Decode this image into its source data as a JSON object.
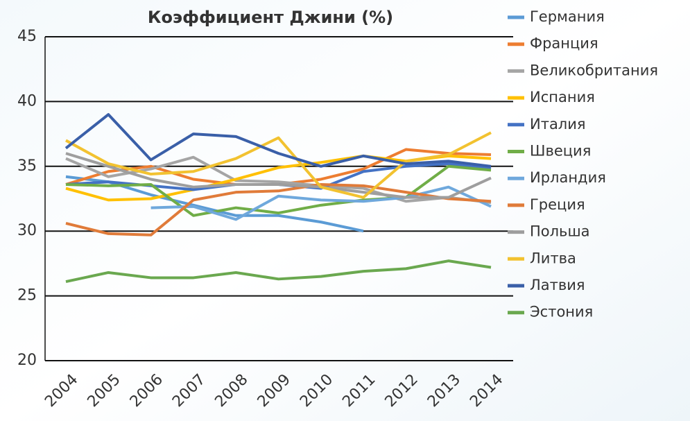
{
  "chart_data": {
    "type": "line",
    "title": "Коэффициент Джини (%)",
    "categories": [
      "2004",
      "2005",
      "2006",
      "2007",
      "2008",
      "2009",
      "2010",
      "2011",
      "2012",
      "2013",
      "2014"
    ],
    "ylim": [
      20,
      45
    ],
    "yticks": [
      20,
      25,
      30,
      35,
      40,
      45
    ],
    "grid": true,
    "legend": "right",
    "series": [
      {
        "name": "Германия",
        "color": "#5b9bd5",
        "values": [
          34.2,
          33.8,
          32.8,
          32.0,
          31.2,
          31.2,
          30.7,
          30.0,
          null,
          null,
          null
        ]
      },
      {
        "name": "Франция",
        "color": "#ed7d31",
        "values": [
          33.6,
          34.6,
          35.0,
          34.0,
          33.6,
          33.6,
          34.0,
          34.8,
          36.3,
          36.0,
          35.9
        ]
      },
      {
        "name": "Великобритания",
        "color": "#a5a5a5",
        "values": [
          35.6,
          34.2,
          34.8,
          35.7,
          33.9,
          33.8,
          33.5,
          33.3,
          32.3,
          32.6,
          32.2
        ]
      },
      {
        "name": "Испания",
        "color": "#ffc000",
        "values": [
          33.3,
          32.4,
          32.5,
          33.2,
          34.0,
          34.9,
          35.3,
          35.8,
          35.4,
          35.8,
          35.6
        ]
      },
      {
        "name": "Италия",
        "color": "#4472c4",
        "values": [
          33.6,
          33.8,
          33.5,
          33.2,
          33.6,
          33.6,
          33.3,
          34.6,
          35.0,
          35.2,
          34.8
        ]
      },
      {
        "name": "Швеция",
        "color": "#70ad47",
        "values": [
          33.6,
          33.5,
          33.6,
          31.2,
          31.8,
          31.4,
          32.0,
          32.4,
          32.6,
          35.0,
          34.7
        ]
      },
      {
        "name": "Ирландия",
        "color": "#6fa8dc",
        "values": [
          null,
          null,
          31.8,
          31.9,
          30.9,
          32.7,
          32.4,
          32.3,
          32.6,
          33.4,
          31.9
        ]
      },
      {
        "name": "Греция",
        "color": "#e07b39",
        "values": [
          30.6,
          29.8,
          29.7,
          32.4,
          33.0,
          33.1,
          33.6,
          33.5,
          33.0,
          32.5,
          32.3
        ]
      },
      {
        "name": "Польша",
        "color": "#9e9e9e",
        "values": [
          36.0,
          35.0,
          34.0,
          33.4,
          33.6,
          33.6,
          33.4,
          33.0,
          32.6,
          32.6,
          34.1
        ]
      },
      {
        "name": "Литва",
        "color": "#f2c230",
        "values": [
          37.0,
          35.2,
          34.4,
          34.6,
          35.6,
          37.2,
          33.4,
          32.6,
          35.4,
          35.9,
          37.6
        ]
      },
      {
        "name": "Латвия",
        "color": "#3a5fa8",
        "values": [
          36.4,
          39.0,
          35.5,
          37.5,
          37.3,
          36.0,
          35.0,
          35.8,
          35.2,
          35.4,
          35.0
        ]
      },
      {
        "name": "Эстония",
        "color": "#6aa84f",
        "values": [
          26.1,
          26.8,
          26.4,
          26.4,
          26.8,
          26.3,
          26.5,
          26.9,
          27.1,
          27.7,
          27.2
        ]
      }
    ]
  }
}
